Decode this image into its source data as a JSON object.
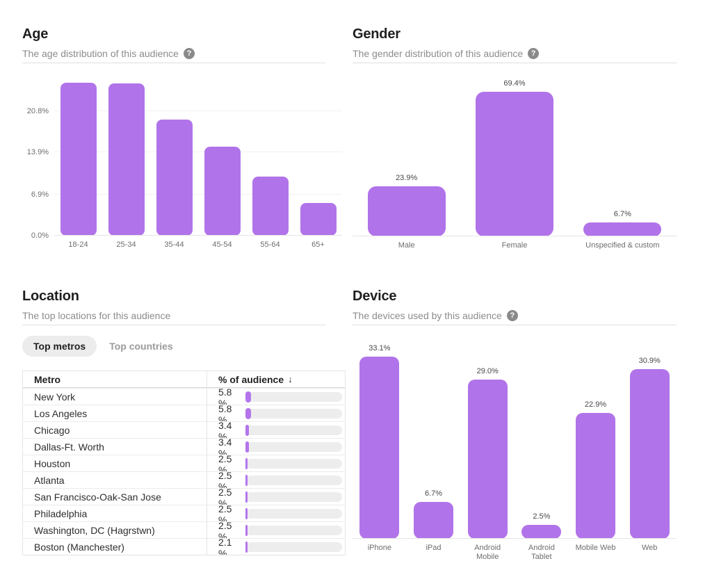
{
  "icons": {
    "help": "?",
    "sort_desc": "↓"
  },
  "colors": {
    "accent_purple": "#b173e9",
    "gauge_fill_purple": "#b475ec",
    "gauge_track_gray": "#ededed"
  },
  "panels": {
    "age": {
      "title": "Age",
      "subtitle": "The age distribution of this audience"
    },
    "gender": {
      "title": "Gender",
      "subtitle": "The gender distribution of this audience"
    },
    "location": {
      "title": "Location",
      "subtitle": "The top locations for this audience",
      "tabs": [
        {
          "label": "Top metros",
          "selected": true
        },
        {
          "label": "Top countries",
          "selected": false
        }
      ],
      "table": {
        "col1": "Metro",
        "col2": "% of audience"
      }
    },
    "device": {
      "title": "Device",
      "subtitle": "The devices used by this audience"
    }
  },
  "chart_data": [
    {
      "id": "age",
      "type": "bar",
      "title": "Age",
      "categories": [
        "18-24",
        "25-34",
        "35-44",
        "45-54",
        "55-64",
        "65+"
      ],
      "values": [
        25.5,
        25.4,
        19.4,
        14.9,
        9.9,
        5.4
      ],
      "yticks": {
        "labels": [
          "0.0%",
          "6.9%",
          "13.9%",
          "20.8%"
        ],
        "values": [
          0,
          6.9,
          13.9,
          20.8
        ]
      },
      "ylim": [
        0,
        27.75
      ],
      "grid": true,
      "data_labels": false,
      "xlabel": "",
      "ylabel": ""
    },
    {
      "id": "gender",
      "type": "bar",
      "title": "Gender",
      "categories": [
        "Male",
        "Female",
        "Unspecified & custom"
      ],
      "values": [
        23.9,
        69.4,
        6.7
      ],
      "ylim": [
        0,
        80
      ],
      "grid": false,
      "data_labels": true,
      "xlabel": "",
      "ylabel": ""
    },
    {
      "id": "location-table",
      "type": "table",
      "title": "Location — Top metros",
      "columns": [
        "Metro",
        "% of audience"
      ],
      "sort": "desc",
      "rows": [
        [
          "New York",
          5.8
        ],
        [
          "Los Angeles",
          5.8
        ],
        [
          "Chicago",
          3.4
        ],
        [
          "Dallas-Ft. Worth",
          3.4
        ],
        [
          "Houston",
          2.5
        ],
        [
          "Atlanta",
          2.5
        ],
        [
          "San Francisco-Oak-San Jose",
          2.5
        ],
        [
          "Philadelphia",
          2.5
        ],
        [
          "Washington, DC (Hagrstwn)",
          2.5
        ],
        [
          "Boston (Manchester)",
          2.1
        ]
      ]
    },
    {
      "id": "device",
      "type": "bar",
      "title": "Device",
      "categories": [
        "iPhone",
        "iPad",
        "Android Mobile",
        "Android Tablet",
        "Mobile Web",
        "Web"
      ],
      "values": [
        33.1,
        6.7,
        29.0,
        2.5,
        22.9,
        30.9
      ],
      "ylim": [
        0,
        33.5
      ],
      "grid": false,
      "data_labels": true,
      "xlabel": "",
      "ylabel": ""
    }
  ]
}
